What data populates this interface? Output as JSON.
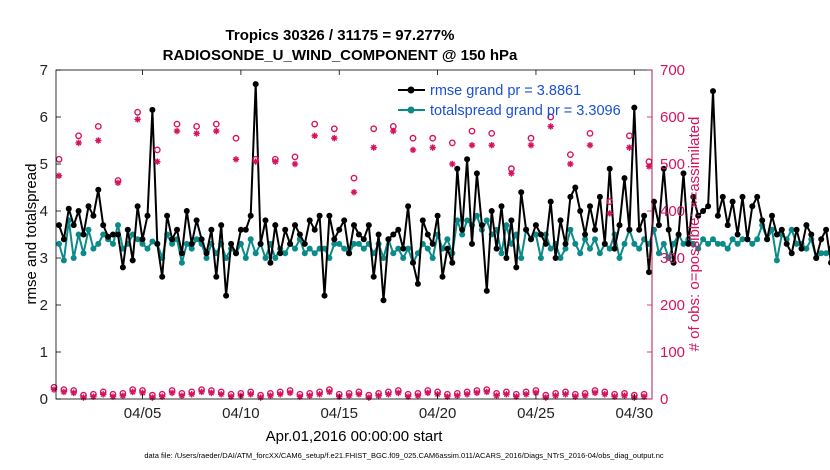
{
  "chart_data": {
    "type": "line",
    "title": "Tropics 30326 / 31175 = 97.277%",
    "subtitle": "RADIOSONDE_U_WIND_COMPONENT @ 150 hPa",
    "xlabel": "Apr.01,2016 00:00:00 start",
    "ylabel": "rmse and totalspread",
    "ylabel_right": "# of obs: o=possible; ×=assimilated",
    "footer": "data file: /Users/raeder/DAI/ATM_forcXX/CAM6_setup/f.e21.FHIST_BGC.f09_025.CAM6assim.011/ACARS_2016/Diags_NTrS_2016-04/obs_diag_output.nc",
    "xlim": [
      0.6,
      30.9
    ],
    "ylim": [
      0,
      7
    ],
    "ylim_right": [
      0,
      700
    ],
    "x_ticks": [
      5,
      10,
      15,
      20,
      25,
      30
    ],
    "x_tick_labels": [
      "04/05",
      "04/10",
      "04/15",
      "04/20",
      "04/25",
      "04/30"
    ],
    "y_ticks": [
      0,
      1,
      2,
      3,
      4,
      5,
      6,
      7
    ],
    "y_ticks_right": [
      0,
      100,
      200,
      300,
      400,
      500,
      600,
      700
    ],
    "x_step_days": 0.25,
    "x_start_day": 0.75,
    "legend": [
      {
        "label": "rmse grand pr = 3.8861",
        "color": "#000000"
      },
      {
        "label": "totalspread grand pr = 3.3096",
        "color": "#0b8a8a"
      }
    ],
    "legend_position": "top-right",
    "colors": {
      "rmse": "#000000",
      "spread": "#0b8a8a",
      "obs": "#d6135f"
    },
    "series": [
      {
        "name": "rmse",
        "axis": "left",
        "values": [
          3.7,
          3.4,
          4.05,
          3.7,
          4.0,
          3.5,
          4.1,
          3.9,
          4.45,
          3.7,
          3.45,
          3.5,
          3.5,
          2.8,
          3.6,
          2.95,
          4.1,
          3.4,
          3.9,
          6.15,
          3.3,
          2.6,
          3.9,
          3.4,
          3.6,
          3.1,
          4.0,
          3.3,
          3.8,
          3.4,
          3.1,
          3.6,
          2.6,
          3.7,
          2.2,
          3.3,
          3.1,
          3.6,
          3.6,
          3.9,
          6.7,
          3.3,
          3.8,
          2.9,
          3.7,
          3.1,
          3.6,
          3.3,
          3.7,
          3.5,
          3.3,
          3.8,
          3.6,
          3.9,
          2.2,
          3.9,
          3.4,
          3.6,
          3.8,
          3.1,
          3.7,
          3.5,
          3.4,
          3.7,
          2.6,
          3.5,
          2.1,
          3.4,
          3.5,
          3.6,
          3.2,
          4.1,
          2.9,
          2.45,
          3.8,
          3.5,
          3.3,
          3.9,
          2.6,
          3.2,
          2.9,
          4.9,
          3.6,
          5.1,
          3.3,
          4.8,
          3.7,
          2.3,
          4.0,
          3.2,
          4.1,
          3.0,
          3.8,
          2.8,
          4.4,
          3.6,
          3.4,
          3.7,
          3.5,
          3.3,
          4.2,
          3.0,
          3.8,
          3.3,
          4.3,
          4.5,
          4.0,
          3.5,
          4.1,
          3.6,
          4.3,
          3.3,
          4.9,
          3.2,
          3.7,
          4.7,
          3.6,
          6.2,
          3.6,
          3.9,
          2.7,
          4.2,
          3.7,
          4.9,
          3.6,
          2.9,
          3.5,
          4.8,
          3.3,
          4.3,
          3.9,
          4.0,
          4.1,
          6.55,
          3.9,
          4.3,
          3.7,
          4.2,
          3.5,
          4.3,
          3.4,
          4.1,
          4.3,
          3.8,
          3.4,
          3.9,
          3.5,
          3.6,
          3.3,
          3.1,
          3.6,
          3.2,
          3.7,
          3.5,
          3.0,
          3.4,
          3.6,
          2.9,
          3.2,
          3.6,
          3.7,
          3.5
        ]
      },
      {
        "name": "totalspread",
        "axis": "left",
        "values": [
          3.3,
          2.95,
          3.8,
          3.0,
          3.5,
          3.1,
          3.6,
          3.2,
          3.3,
          3.5,
          3.4,
          3.3,
          3.7,
          3.2,
          3.3,
          3.5,
          3.4,
          3.3,
          3.2,
          3.35,
          3.3,
          3.0,
          3.5,
          3.3,
          3.4,
          2.9,
          3.3,
          3.2,
          3.4,
          3.3,
          3.0,
          3.3,
          3.1,
          3.3,
          3.0,
          3.2,
          3.1,
          3.3,
          3.0,
          3.4,
          3.1,
          3.3,
          3.0,
          3.3,
          3.0,
          3.2,
          3.1,
          3.3,
          3.2,
          3.4,
          3.1,
          3.2,
          3.1,
          3.2,
          3.2,
          3.0,
          3.3,
          3.3,
          3.2,
          3.1,
          3.3,
          3.3,
          3.2,
          3.3,
          3.1,
          3.3,
          3.0,
          3.4,
          3.1,
          3.2,
          3.0,
          3.2,
          2.9,
          3.1,
          3.3,
          3.2,
          3.0,
          3.5,
          3.2,
          3.4,
          3.1,
          3.8,
          3.5,
          3.8,
          3.7,
          3.9,
          3.6,
          3.8,
          3.5,
          3.6,
          3.1,
          3.7,
          3.3,
          3.5,
          3.0,
          3.6,
          3.4,
          3.5,
          3.0,
          3.5,
          3.2,
          3.3,
          3.0,
          3.2,
          3.6,
          3.3,
          3.1,
          3.4,
          3.2,
          3.4,
          3.1,
          3.3,
          3.2,
          3.5,
          3.0,
          3.3,
          3.6,
          3.3,
          3.2,
          3.4,
          3.3,
          3.6,
          3.1,
          3.3,
          3.0,
          3.3,
          3.5,
          3.3,
          3.4,
          3.3,
          3.2,
          3.4,
          3.3,
          3.4,
          3.3,
          3.3,
          3.2,
          3.4,
          3.3,
          3.4,
          3.4,
          3.3,
          3.4,
          3.7,
          3.4,
          3.6,
          2.95,
          3.5,
          3.4,
          3.6,
          3.3,
          3.3,
          3.2,
          3.4,
          3.0,
          3.1,
          3.1,
          3.2,
          3.0,
          3.1,
          2.9,
          3.3,
          3.2
        ]
      },
      {
        "name": "obs possible",
        "axis": "right",
        "marker": "o",
        "x": [
          0.75,
          1.75,
          2.75,
          3.75,
          4.75,
          5.75,
          6.75,
          7.75,
          8.75,
          9.75,
          10.75,
          11.75,
          12.75,
          13.75,
          14.75,
          15.75,
          16.75,
          17.75,
          18.75,
          19.75,
          20.75,
          21.75,
          22.75,
          23.75,
          24.75,
          25.75,
          26.75,
          27.75,
          28.75,
          29.75,
          30.75
        ],
        "values": [
          510,
          560,
          580,
          465,
          610,
          530,
          585,
          580,
          585,
          555,
          510,
          510,
          515,
          585,
          575,
          470,
          575,
          580,
          555,
          555,
          545,
          570,
          565,
          490,
          555,
          600,
          520,
          565,
          420,
          560,
          505
        ]
      },
      {
        "name": "obs assimilated",
        "axis": "right",
        "marker": "x",
        "x": [
          0.75,
          1.75,
          2.75,
          3.75,
          4.75,
          5.75,
          6.75,
          7.75,
          8.75,
          9.75,
          10.75,
          11.75,
          12.75,
          13.75,
          14.75,
          15.75,
          16.75,
          17.75,
          18.75,
          19.75,
          20.75,
          21.75,
          22.75,
          23.75,
          24.75,
          25.75,
          26.75,
          27.75,
          28.75,
          29.75,
          30.75
        ],
        "values": [
          475,
          545,
          550,
          460,
          595,
          505,
          570,
          565,
          570,
          510,
          505,
          505,
          500,
          560,
          555,
          440,
          535,
          570,
          530,
          535,
          500,
          540,
          540,
          480,
          540,
          580,
          500,
          540,
          395,
          535,
          495
        ]
      },
      {
        "name": "obs possible 00Z",
        "axis": "right",
        "marker": "o",
        "x": [
          0.5,
          1.0,
          1.5,
          2.0,
          2.5,
          3.0,
          3.5,
          4.0,
          4.5,
          5.0,
          5.5,
          6.0,
          6.5,
          7.0,
          7.5,
          8.0,
          8.5,
          9.0,
          9.5,
          10.0,
          10.5,
          11.0,
          11.5,
          12.0,
          12.5,
          13.0,
          13.5,
          14.0,
          14.5,
          15.0,
          15.5,
          16.0,
          16.5,
          17.0,
          17.5,
          18.0,
          18.5,
          19.0,
          19.5,
          20.0,
          20.5,
          21.0,
          21.5,
          22.0,
          22.5,
          23.0,
          23.5,
          24.0,
          24.5,
          25.0,
          25.5,
          26.0,
          26.5,
          27.0,
          27.5,
          28.0,
          28.5,
          29.0,
          29.5,
          30.0,
          30.5
        ],
        "values": [
          25,
          20,
          18,
          8,
          10,
          15,
          10,
          12,
          20,
          18,
          8,
          10,
          18,
          12,
          15,
          20,
          18,
          15,
          10,
          12,
          15,
          8,
          12,
          15,
          18,
          10,
          12,
          15,
          20,
          10,
          12,
          15,
          8,
          12,
          15,
          18,
          10,
          12,
          18,
          15,
          10,
          12,
          15,
          18,
          20,
          12,
          15,
          10,
          15,
          18,
          8,
          12,
          15,
          10,
          12,
          18,
          15,
          10,
          12,
          8,
          10
        ]
      }
    ]
  }
}
